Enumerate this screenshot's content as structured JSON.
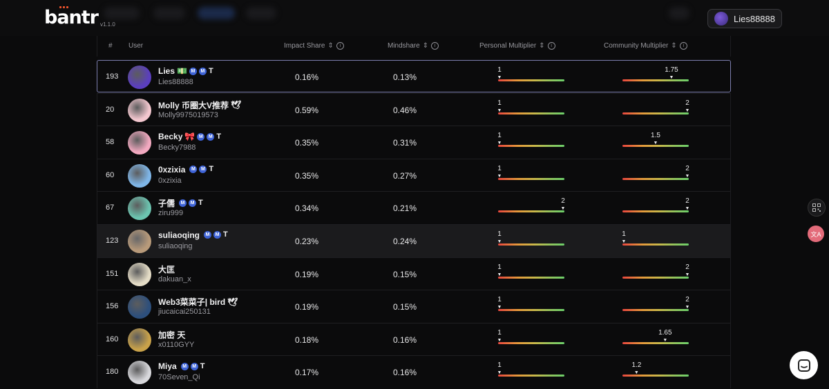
{
  "app": {
    "logo": "bantr",
    "version": "v1.1.0"
  },
  "user_chip": {
    "name": "Lies88888"
  },
  "table": {
    "columns": {
      "rank": "#",
      "user": "User",
      "impact": "Impact Share",
      "mind": "Mindshare",
      "personal": "Personal Multiplier",
      "community": "Community Multiplier"
    },
    "rows": [
      {
        "rank": "193",
        "name": "Lies",
        "emoji": "💵",
        "badges": [
          "M",
          "M",
          "T"
        ],
        "handle": "Lies88888",
        "impact": "0.16%",
        "mind": "0.13%",
        "personal": "1",
        "personal_frac": 0.0,
        "community": "1.75",
        "community_frac": 0.75,
        "avatar_color": "#5b3fbf"
      },
      {
        "rank": "20",
        "name": "Molly 币圈大V推荐",
        "emoji": "🕊",
        "badges": [],
        "handle": "Molly9975019573",
        "impact": "0.59%",
        "mind": "0.46%",
        "personal": "1",
        "personal_frac": 0.0,
        "community": "2",
        "community_frac": 1.0,
        "avatar_color": "#f3c7cf"
      },
      {
        "rank": "58",
        "name": "Becky",
        "emoji": "🎀",
        "badges": [
          "M",
          "M",
          "T"
        ],
        "handle": "Becky7988",
        "impact": "0.35%",
        "mind": "0.31%",
        "personal": "1",
        "personal_frac": 0.0,
        "community": "1.5",
        "community_frac": 0.5,
        "avatar_color": "#f2a9c0"
      },
      {
        "rank": "60",
        "name": "0xzixia",
        "emoji": "",
        "badges": [
          "M",
          "M",
          "T"
        ],
        "handle": "0xzixia",
        "impact": "0.35%",
        "mind": "0.27%",
        "personal": "1",
        "personal_frac": 0.0,
        "community": "2",
        "community_frac": 1.0,
        "avatar_color": "#7fb6e8"
      },
      {
        "rank": "67",
        "name": "子儒",
        "emoji": "",
        "badges": [
          "M",
          "M",
          "T"
        ],
        "handle": "ziru999",
        "impact": "0.34%",
        "mind": "0.21%",
        "personal": "2",
        "personal_frac": 1.0,
        "community": "2",
        "community_frac": 1.0,
        "avatar_color": "#6cc4b0"
      },
      {
        "rank": "123",
        "name": "suliaoqing",
        "emoji": "",
        "badges": [
          "M",
          "M",
          "T"
        ],
        "handle": "suliaoqing",
        "impact": "0.23%",
        "mind": "0.24%",
        "personal": "1",
        "personal_frac": 0.0,
        "community": "1",
        "community_frac": 0.0,
        "avatar_color": "#b89a7a"
      },
      {
        "rank": "151",
        "name": "大匡",
        "emoji": "",
        "badges": [],
        "handle": "dakuan_x",
        "impact": "0.19%",
        "mind": "0.15%",
        "personal": "1",
        "personal_frac": 0.0,
        "community": "2",
        "community_frac": 1.0,
        "avatar_color": "#e4dcc6"
      },
      {
        "rank": "156",
        "name": "Web3菜菜子| bird",
        "emoji": "🕊",
        "badges": [],
        "handle": "jiucaicai250131",
        "impact": "0.19%",
        "mind": "0.15%",
        "personal": "1",
        "personal_frac": 0.0,
        "community": "2",
        "community_frac": 1.0,
        "avatar_color": "#2d4f7c"
      },
      {
        "rank": "160",
        "name": "加密 天",
        "emoji": "",
        "badges": [],
        "handle": "x0110GYY",
        "impact": "0.18%",
        "mind": "0.16%",
        "personal": "1",
        "personal_frac": 0.0,
        "community": "1.65",
        "community_frac": 0.65,
        "avatar_color": "#c9a24a"
      },
      {
        "rank": "180",
        "name": "Miya",
        "emoji": "",
        "badges": [
          "M",
          "M",
          "T"
        ],
        "handle": "70Seven_Qi",
        "impact": "0.17%",
        "mind": "0.16%",
        "personal": "1",
        "personal_frac": 0.0,
        "community": "1.2",
        "community_frac": 0.2,
        "avatar_color": "#d8d8dc"
      }
    ]
  },
  "colors": {
    "highlight_border": "#7d7fb0",
    "accent": "#f2542d",
    "badge": "#3e63d6"
  },
  "icons": {
    "sort": "sort-icon",
    "info": "info-icon",
    "qr": "qr-icon",
    "translate": "translate-icon",
    "chat": "chat-icon"
  }
}
